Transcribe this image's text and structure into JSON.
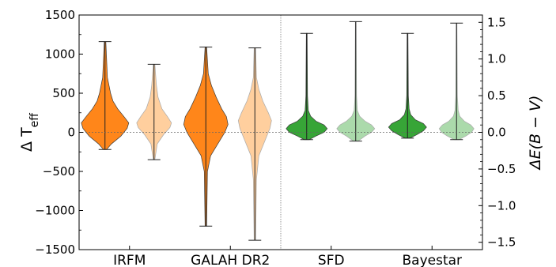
{
  "chart_data": {
    "type": "violin",
    "categories": [
      "IRFM",
      "GALAH DR2",
      "SFD",
      "Bayestar"
    ],
    "left_axis": {
      "label": "Δ T",
      "label_sub": "eff",
      "ylim": [
        -1500,
        1500
      ],
      "ticks": [
        -1500,
        -1000,
        -500,
        0,
        500,
        1000,
        1500
      ]
    },
    "right_axis": {
      "label": "ΔE(B − V)",
      "ylim": [
        -1.6,
        1.6
      ],
      "ticks": [
        -1.5,
        -1.0,
        -0.5,
        0.0,
        0.5,
        1.0,
        1.5
      ],
      "tick_labels": [
        "−1.5",
        "−1.0",
        "−0.5",
        "0.0",
        "0.5",
        "1.0",
        "1.5"
      ]
    },
    "grid": false,
    "reference_line": 0,
    "divider_between_categories": [
      1,
      2
    ],
    "series": [
      {
        "category": "IRFM",
        "axis": "left",
        "shade": "dark",
        "color": "#ff7f0e",
        "min": -220,
        "max": 1160,
        "profile": [
          [
            -220,
            2
          ],
          [
            -150,
            8
          ],
          [
            -50,
            20
          ],
          [
            50,
            28
          ],
          [
            120,
            30
          ],
          [
            200,
            24
          ],
          [
            300,
            16
          ],
          [
            400,
            10
          ],
          [
            500,
            7
          ],
          [
            700,
            3
          ],
          [
            1160,
            1
          ]
        ]
      },
      {
        "category": "IRFM",
        "axis": "left",
        "shade": "light",
        "color": "#ffcc99",
        "min": -350,
        "max": 870,
        "profile": [
          [
            -350,
            1
          ],
          [
            -150,
            4
          ],
          [
            -30,
            12
          ],
          [
            60,
            20
          ],
          [
            120,
            22
          ],
          [
            200,
            17
          ],
          [
            300,
            10
          ],
          [
            450,
            5
          ],
          [
            600,
            3
          ],
          [
            870,
            1
          ]
        ]
      },
      {
        "category": "GALAH DR2",
        "axis": "left",
        "shade": "dark",
        "color": "#ff7f0e",
        "min": -1200,
        "max": 1090,
        "profile": [
          [
            -1200,
            1
          ],
          [
            -500,
            2
          ],
          [
            -300,
            6
          ],
          [
            -150,
            15
          ],
          [
            0,
            24
          ],
          [
            100,
            28
          ],
          [
            200,
            26
          ],
          [
            300,
            20
          ],
          [
            450,
            13
          ],
          [
            600,
            7
          ],
          [
            750,
            3
          ],
          [
            1090,
            1
          ]
        ]
      },
      {
        "category": "GALAH DR2",
        "axis": "left",
        "shade": "light",
        "color": "#ffcc99",
        "min": -1380,
        "max": 1080,
        "profile": [
          [
            -1380,
            1
          ],
          [
            -600,
            2
          ],
          [
            -300,
            5
          ],
          [
            -100,
            13
          ],
          [
            50,
            19
          ],
          [
            150,
            21
          ],
          [
            250,
            17
          ],
          [
            400,
            10
          ],
          [
            550,
            5
          ],
          [
            700,
            2
          ],
          [
            1080,
            1
          ]
        ]
      },
      {
        "category": "SFD",
        "axis": "right",
        "shade": "dark",
        "color": "#2ca02c",
        "min": -0.1,
        "max": 1.35,
        "profile": [
          [
            -0.1,
            3
          ],
          [
            -0.05,
            12
          ],
          [
            0.0,
            22
          ],
          [
            0.05,
            26
          ],
          [
            0.1,
            22
          ],
          [
            0.15,
            12
          ],
          [
            0.22,
            5
          ],
          [
            0.3,
            2
          ],
          [
            0.5,
            1
          ],
          [
            1.35,
            0.5
          ]
        ]
      },
      {
        "category": "SFD",
        "axis": "right",
        "shade": "light",
        "color": "#a7d8a7",
        "min": -0.12,
        "max": 1.51,
        "profile": [
          [
            -0.12,
            3
          ],
          [
            -0.05,
            12
          ],
          [
            0.0,
            20
          ],
          [
            0.05,
            24
          ],
          [
            0.1,
            20
          ],
          [
            0.15,
            12
          ],
          [
            0.22,
            5
          ],
          [
            0.3,
            2
          ],
          [
            0.5,
            1
          ],
          [
            1.51,
            0.5
          ]
        ]
      },
      {
        "category": "Bayestar",
        "axis": "right",
        "shade": "dark",
        "color": "#2ca02c",
        "min": -0.08,
        "max": 1.35,
        "profile": [
          [
            -0.08,
            3
          ],
          [
            -0.03,
            12
          ],
          [
            0.02,
            20
          ],
          [
            0.07,
            24
          ],
          [
            0.12,
            20
          ],
          [
            0.17,
            10
          ],
          [
            0.24,
            4
          ],
          [
            0.32,
            2
          ],
          [
            0.5,
            1
          ],
          [
            1.35,
            0.5
          ]
        ]
      },
      {
        "category": "Bayestar",
        "axis": "right",
        "shade": "light",
        "color": "#a7d8a7",
        "min": -0.1,
        "max": 1.49,
        "profile": [
          [
            -0.1,
            3
          ],
          [
            -0.05,
            12
          ],
          [
            0.0,
            19
          ],
          [
            0.05,
            22
          ],
          [
            0.1,
            18
          ],
          [
            0.15,
            10
          ],
          [
            0.22,
            4
          ],
          [
            0.3,
            2
          ],
          [
            0.5,
            1
          ],
          [
            1.49,
            0.5
          ]
        ]
      }
    ]
  }
}
